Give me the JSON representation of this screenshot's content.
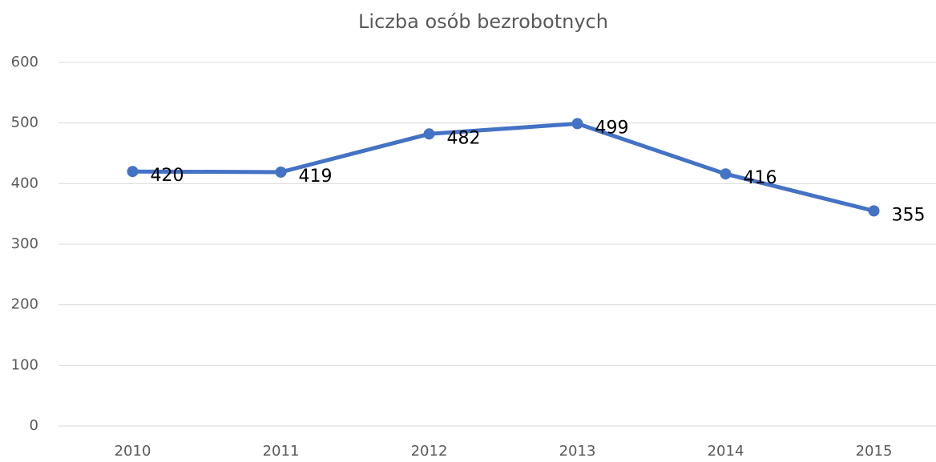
{
  "chart_data": {
    "type": "line",
    "title": "Liczba osób bezrobotnych",
    "categories": [
      "2010",
      "2011",
      "2012",
      "2013",
      "2014",
      "2015"
    ],
    "values": [
      420,
      419,
      482,
      499,
      416,
      355
    ],
    "color": "#4472c4",
    "ylim": [
      0,
      600
    ],
    "yticks": [
      0,
      100,
      200,
      300,
      400,
      500,
      600
    ],
    "grid": true
  }
}
